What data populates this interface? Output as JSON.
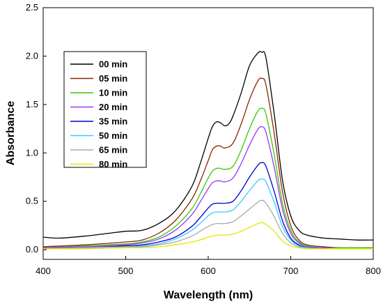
{
  "chart_data": {
    "type": "line",
    "xlabel": "Wavelength (nm)",
    "ylabel": "Absorbance",
    "xlim": [
      400,
      800
    ],
    "ylim": [
      -0.1,
      2.5
    ],
    "xticks": [
      "400",
      "500",
      "600",
      "700",
      "800"
    ],
    "yticks": [
      "0.0",
      "0.5",
      "1.0",
      "1.5",
      "2.0",
      "2.5"
    ],
    "legend_position": "top-left",
    "grid": false,
    "series": [
      {
        "name": "00 min",
        "color": "#000000",
        "x": [
          400,
          420,
          450,
          480,
          500,
          520,
          540,
          560,
          580,
          590,
          600,
          605,
          610,
          615,
          620,
          625,
          630,
          640,
          650,
          660,
          665,
          670,
          680,
          690,
          700,
          710,
          720,
          740,
          760,
          780,
          800
        ],
        "y": [
          0.13,
          0.12,
          0.14,
          0.17,
          0.19,
          0.2,
          0.27,
          0.4,
          0.65,
          0.88,
          1.15,
          1.27,
          1.32,
          1.31,
          1.28,
          1.3,
          1.38,
          1.62,
          1.9,
          2.03,
          2.04,
          1.98,
          1.4,
          0.72,
          0.35,
          0.2,
          0.15,
          0.12,
          0.11,
          0.1,
          0.1
        ]
      },
      {
        "name": "05 min",
        "color": "#8b2500",
        "x": [
          400,
          450,
          500,
          520,
          540,
          560,
          580,
          590,
          600,
          605,
          610,
          615,
          620,
          630,
          640,
          650,
          660,
          665,
          670,
          680,
          690,
          700,
          710,
          720,
          740,
          760,
          800
        ],
        "y": [
          0.03,
          0.05,
          0.08,
          0.1,
          0.17,
          0.3,
          0.52,
          0.7,
          0.92,
          1.03,
          1.07,
          1.07,
          1.05,
          1.1,
          1.3,
          1.55,
          1.74,
          1.77,
          1.7,
          1.2,
          0.6,
          0.25,
          0.1,
          0.05,
          0.03,
          0.02,
          0.02
        ]
      },
      {
        "name": "10 min",
        "color": "#33cc00",
        "x": [
          400,
          450,
          500,
          520,
          540,
          560,
          580,
          590,
          600,
          605,
          610,
          615,
          620,
          630,
          640,
          650,
          660,
          665,
          670,
          680,
          690,
          700,
          710,
          720,
          740,
          760,
          800
        ],
        "y": [
          0.02,
          0.04,
          0.06,
          0.08,
          0.13,
          0.24,
          0.42,
          0.57,
          0.74,
          0.81,
          0.84,
          0.84,
          0.83,
          0.86,
          1.03,
          1.25,
          1.43,
          1.46,
          1.4,
          0.98,
          0.48,
          0.2,
          0.08,
          0.04,
          0.02,
          0.02,
          0.02
        ]
      },
      {
        "name": "20 min",
        "color": "#9933ff",
        "x": [
          400,
          450,
          500,
          520,
          540,
          560,
          580,
          590,
          600,
          605,
          610,
          615,
          620,
          630,
          640,
          650,
          660,
          665,
          670,
          680,
          690,
          700,
          710,
          720,
          740,
          760,
          800
        ],
        "y": [
          0.02,
          0.03,
          0.05,
          0.07,
          0.11,
          0.2,
          0.36,
          0.49,
          0.63,
          0.69,
          0.71,
          0.71,
          0.7,
          0.74,
          0.89,
          1.08,
          1.24,
          1.27,
          1.21,
          0.85,
          0.42,
          0.17,
          0.07,
          0.03,
          0.02,
          0.01,
          0.01
        ]
      },
      {
        "name": "35 min",
        "color": "#0000cc",
        "x": [
          400,
          450,
          500,
          520,
          540,
          560,
          580,
          590,
          600,
          605,
          610,
          615,
          620,
          630,
          640,
          650,
          660,
          665,
          670,
          680,
          690,
          700,
          710,
          720,
          740,
          760,
          800
        ],
        "y": [
          0.01,
          0.02,
          0.04,
          0.05,
          0.08,
          0.13,
          0.24,
          0.33,
          0.43,
          0.47,
          0.48,
          0.48,
          0.48,
          0.5,
          0.61,
          0.75,
          0.87,
          0.9,
          0.86,
          0.6,
          0.3,
          0.12,
          0.05,
          0.02,
          0.01,
          0.01,
          0.01
        ]
      },
      {
        "name": "50 min",
        "color": "#33ccff",
        "x": [
          400,
          450,
          500,
          520,
          540,
          560,
          580,
          590,
          600,
          605,
          610,
          615,
          620,
          630,
          640,
          650,
          660,
          665,
          670,
          680,
          690,
          700,
          710,
          720,
          740,
          760,
          800
        ],
        "y": [
          0.01,
          0.02,
          0.03,
          0.04,
          0.06,
          0.11,
          0.2,
          0.27,
          0.35,
          0.38,
          0.39,
          0.39,
          0.39,
          0.41,
          0.5,
          0.61,
          0.71,
          0.73,
          0.7,
          0.49,
          0.24,
          0.1,
          0.04,
          0.02,
          0.01,
          0.01,
          0.01
        ]
      },
      {
        "name": "65 min",
        "color": "#a8a8a8",
        "x": [
          400,
          450,
          500,
          520,
          540,
          560,
          580,
          590,
          600,
          605,
          610,
          615,
          620,
          630,
          640,
          650,
          660,
          665,
          670,
          680,
          690,
          700,
          710,
          720,
          740,
          760,
          800
        ],
        "y": [
          0.01,
          0.02,
          0.03,
          0.03,
          0.05,
          0.08,
          0.14,
          0.19,
          0.24,
          0.26,
          0.27,
          0.27,
          0.27,
          0.29,
          0.35,
          0.42,
          0.49,
          0.51,
          0.48,
          0.34,
          0.17,
          0.07,
          0.03,
          0.01,
          0.01,
          0.01,
          0.01
        ]
      },
      {
        "name": "80 min",
        "color": "#e6e600",
        "x": [
          400,
          450,
          500,
          520,
          540,
          560,
          580,
          590,
          600,
          605,
          610,
          615,
          620,
          630,
          640,
          650,
          660,
          665,
          670,
          680,
          690,
          700,
          710,
          720,
          740,
          760,
          800
        ],
        "y": [
          0.01,
          0.01,
          0.02,
          0.02,
          0.03,
          0.05,
          0.08,
          0.1,
          0.13,
          0.14,
          0.15,
          0.15,
          0.15,
          0.16,
          0.19,
          0.23,
          0.27,
          0.28,
          0.26,
          0.19,
          0.09,
          0.04,
          0.02,
          0.01,
          0.01,
          0.01,
          0.01
        ]
      }
    ]
  }
}
